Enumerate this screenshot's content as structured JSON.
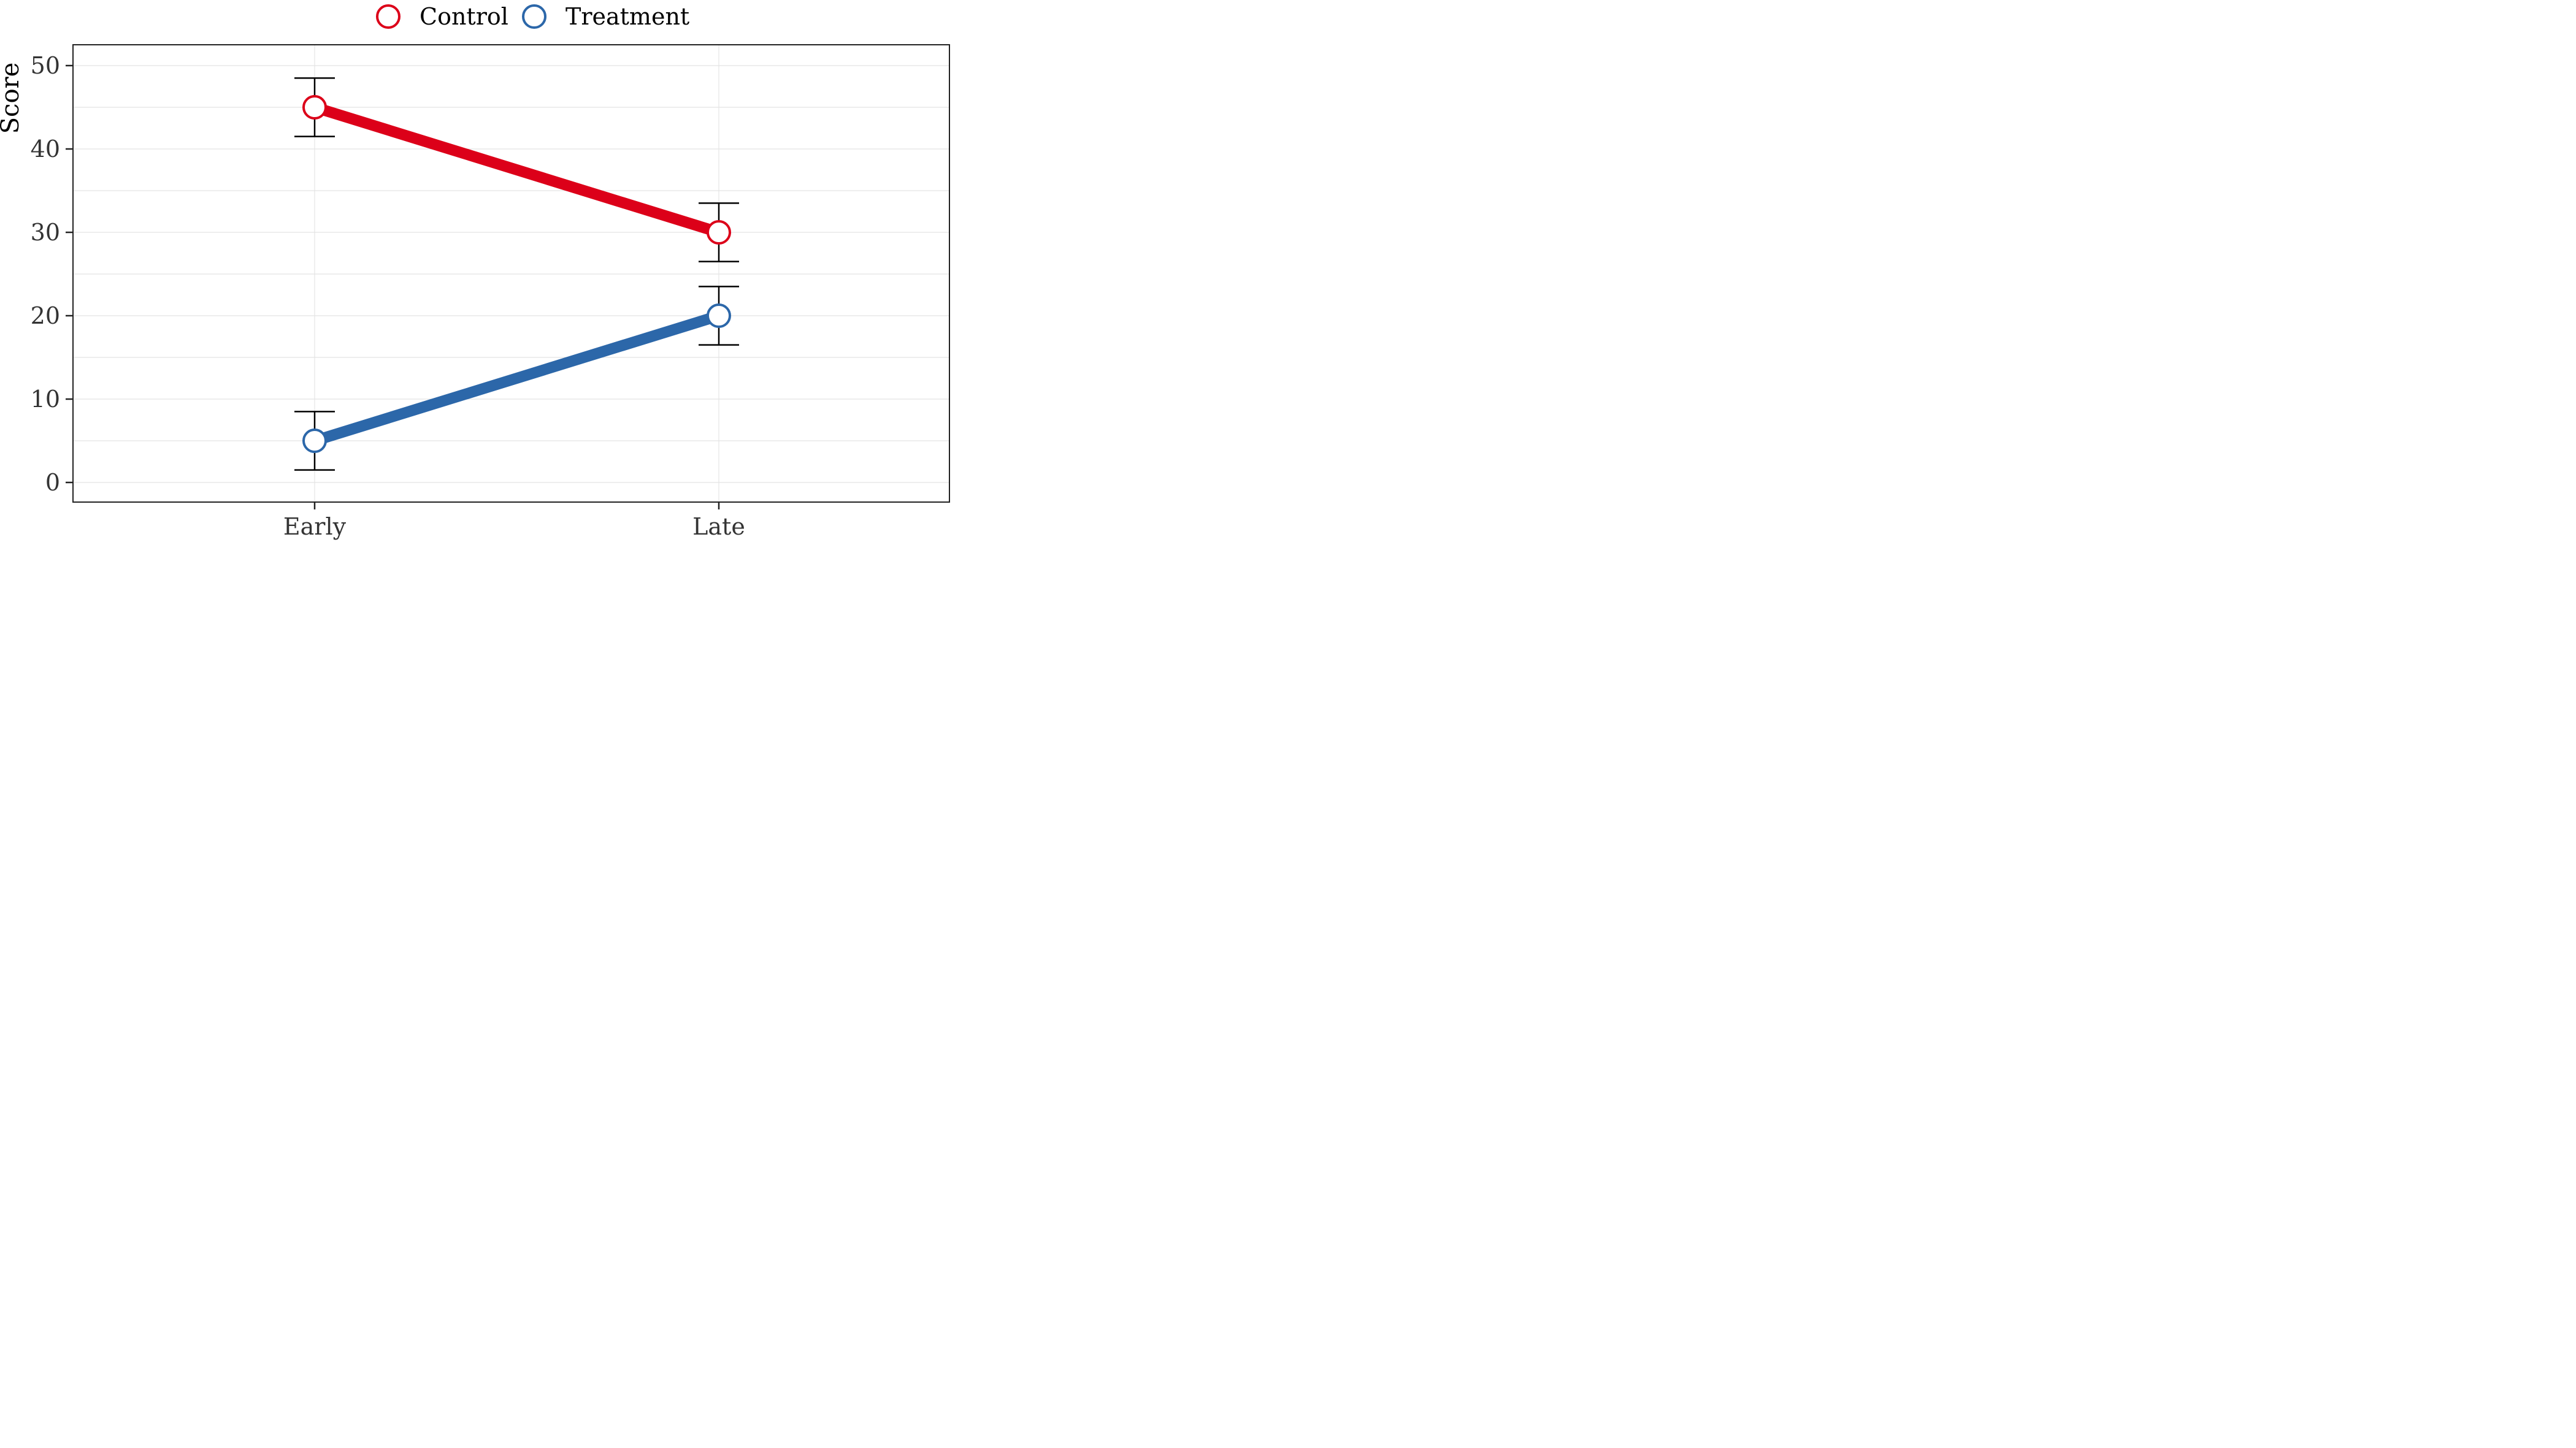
{
  "chart_data": {
    "type": "line",
    "categories": [
      "Early",
      "Late"
    ],
    "ylabel": "Score",
    "xlabel": "",
    "ylim": [
      -2.4,
      52.5
    ],
    "yticks": [
      0,
      10,
      20,
      30,
      40,
      50
    ],
    "grid": true,
    "legend_position": "top",
    "series": [
      {
        "name": "Control",
        "color": "#dc0019",
        "values": [
          45,
          30
        ],
        "error_low": [
          41.5,
          26.5
        ],
        "error_high": [
          48.5,
          33.5
        ]
      },
      {
        "name": "Treatment",
        "color": "#2c67a9",
        "values": [
          5,
          20
        ],
        "error_low": [
          1.5,
          16.5
        ],
        "error_high": [
          8.5,
          23.5
        ]
      }
    ]
  }
}
